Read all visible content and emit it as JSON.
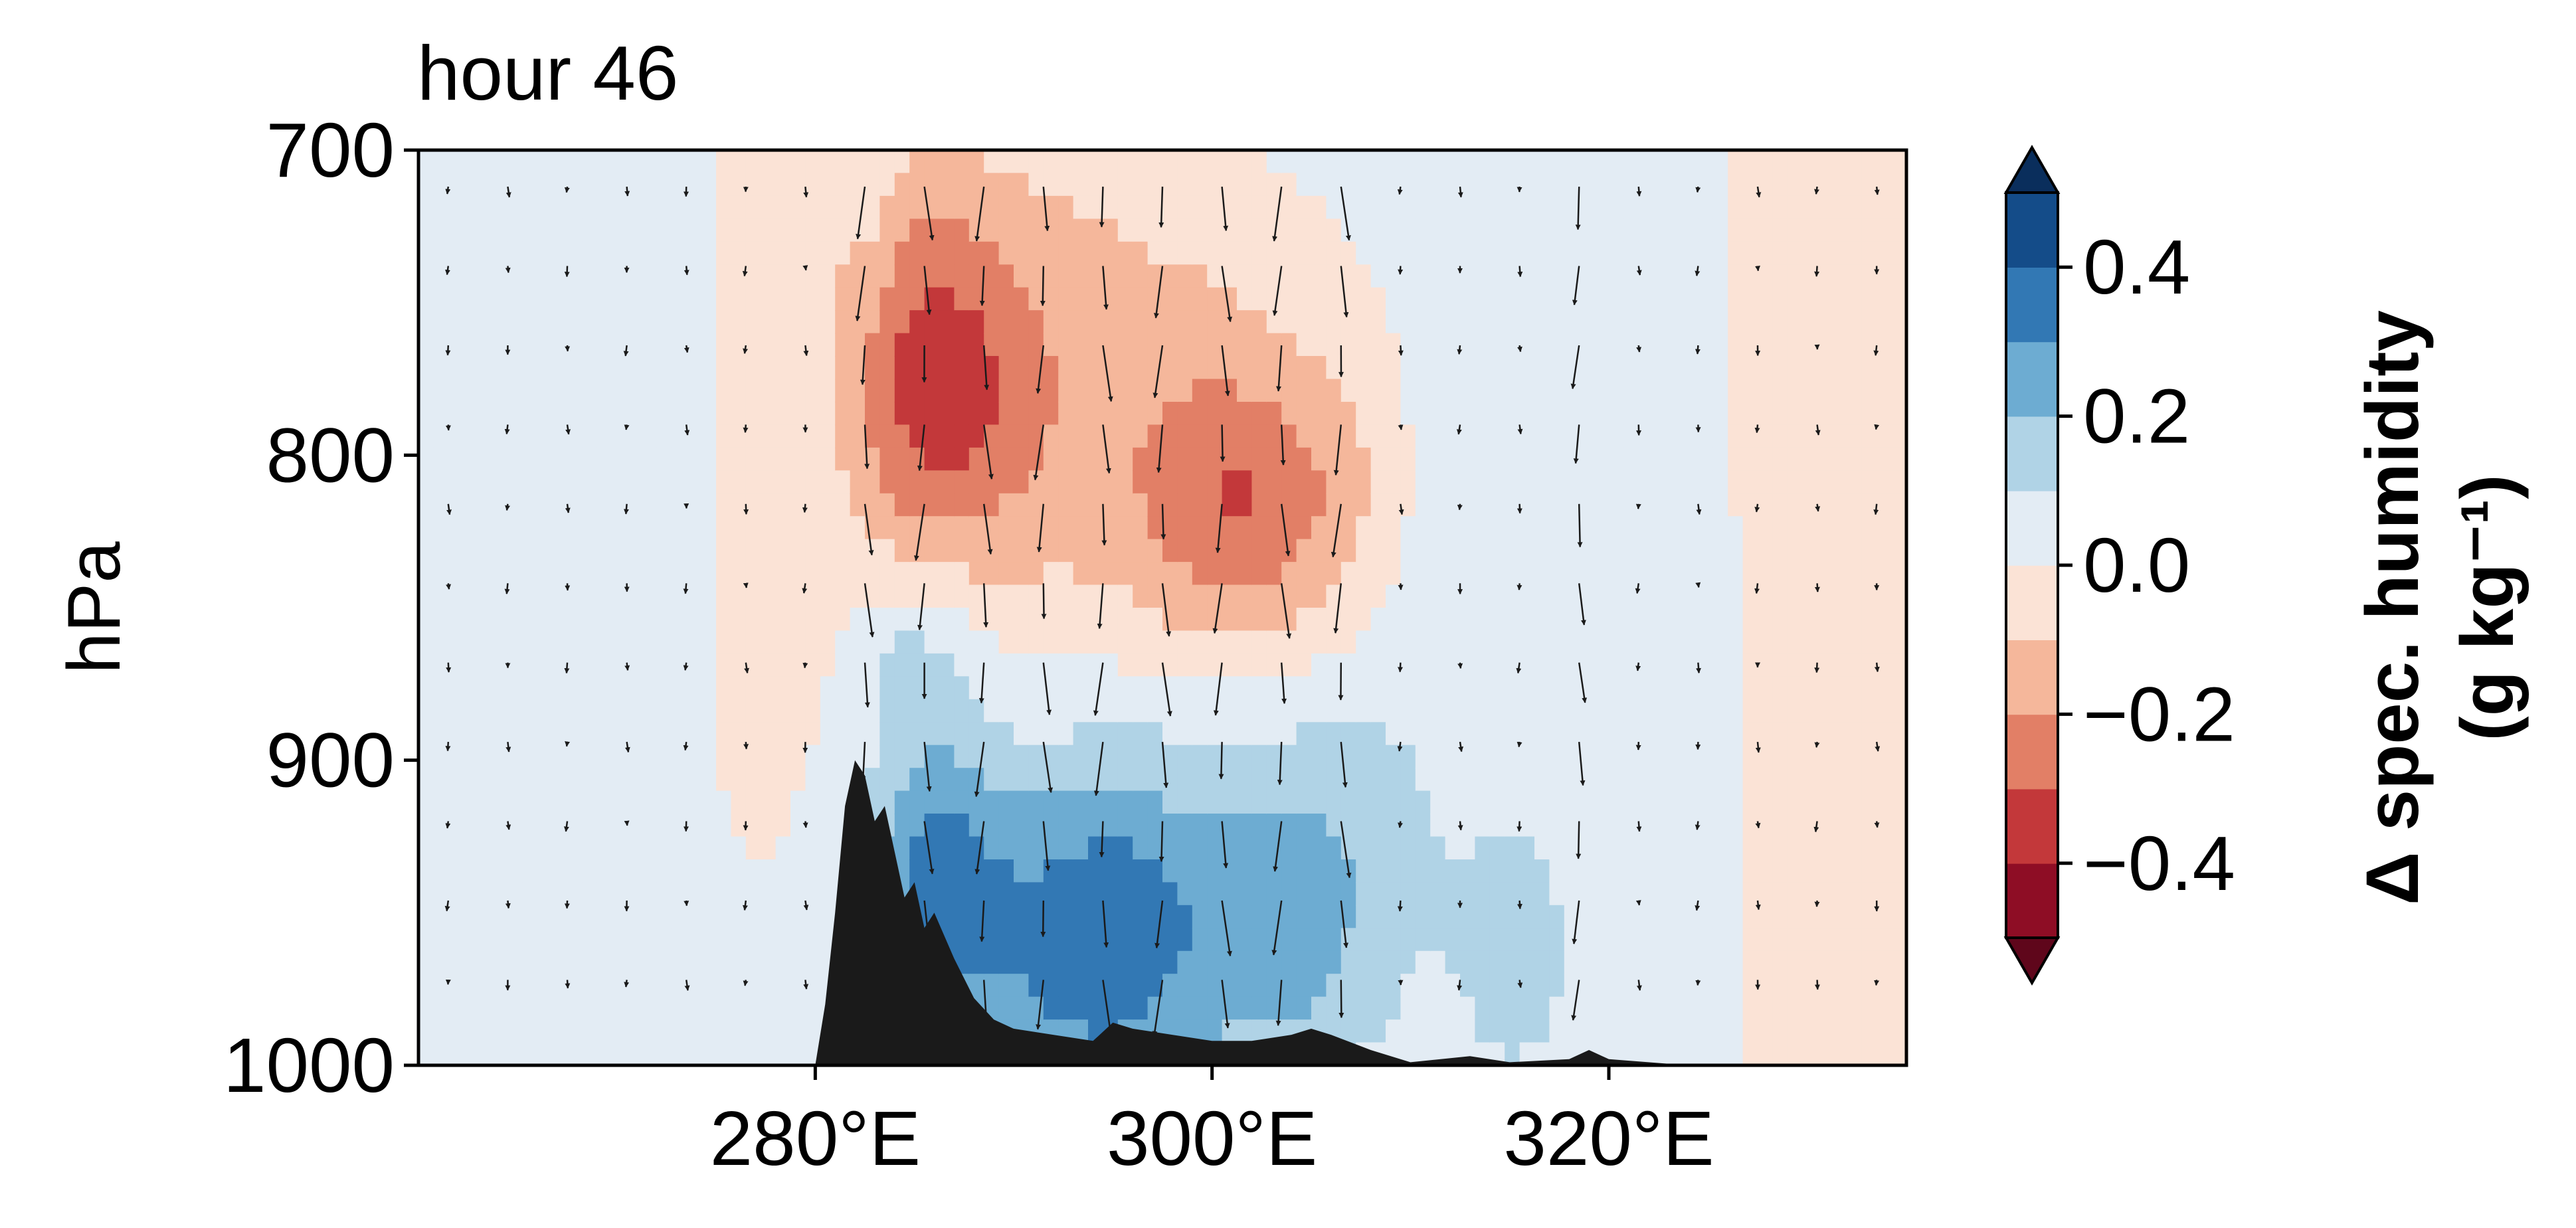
{
  "chart_data": {
    "type": "contour",
    "title": "hour 46",
    "xlabel": "",
    "ylabel": "hPa",
    "x_ticks": [
      "280°E",
      "300°E",
      "320°E"
    ],
    "x_tick_values": [
      280,
      300,
      320
    ],
    "y_ticks": [
      "700",
      "800",
      "900",
      "1000"
    ],
    "y_tick_values": [
      700,
      800,
      900,
      1000
    ],
    "xlim": [
      260,
      335
    ],
    "ylim": [
      1000,
      700
    ],
    "y_inverted": true,
    "colorbar": {
      "label_line1": "Δ spec. humidity",
      "label_line2": "(g kg⁻¹)",
      "ticks": [
        "0.4",
        "0.2",
        "0.0",
        "−0.2",
        "−0.4"
      ],
      "tick_values": [
        0.4,
        0.2,
        0.0,
        -0.2,
        -0.4
      ],
      "levels": [
        -0.5,
        -0.4,
        -0.3,
        -0.2,
        -0.1,
        0.0,
        0.1,
        0.2,
        0.3,
        0.4,
        0.5
      ],
      "colors": [
        "#8e0d25",
        "#c3383a",
        "#e27f66",
        "#f5b79b",
        "#fbe3d6",
        "#e3ecf4",
        "#b0d3e6",
        "#6dacd2",
        "#3278b4",
        "#144c89"
      ],
      "extend": "both"
    },
    "terrain_color": "#1a1a1a",
    "terrain_profile": [
      [
        280.0,
        1000
      ],
      [
        280.5,
        980
      ],
      [
        281.0,
        950
      ],
      [
        281.5,
        915
      ],
      [
        282.0,
        900
      ],
      [
        282.5,
        905
      ],
      [
        283.0,
        920
      ],
      [
        283.5,
        915
      ],
      [
        284.0,
        930
      ],
      [
        284.5,
        945
      ],
      [
        285.0,
        940
      ],
      [
        285.5,
        955
      ],
      [
        286.0,
        950
      ],
      [
        287.0,
        965
      ],
      [
        288.0,
        978
      ],
      [
        289.0,
        985
      ],
      [
        290.0,
        988
      ],
      [
        292.0,
        990
      ],
      [
        294.0,
        992
      ],
      [
        295.0,
        986
      ],
      [
        296.0,
        988
      ],
      [
        298.0,
        990
      ],
      [
        300.0,
        992
      ],
      [
        302.0,
        992
      ],
      [
        304.0,
        990
      ],
      [
        305.0,
        988
      ],
      [
        306.0,
        990
      ],
      [
        308.0,
        995
      ],
      [
        310.0,
        999
      ],
      [
        313.0,
        997
      ],
      [
        315.0,
        999
      ],
      [
        318.0,
        998
      ],
      [
        319.0,
        995
      ],
      [
        320.0,
        998
      ],
      [
        322.0,
        999
      ],
      [
        324.0,
        1000
      ]
    ]
  }
}
